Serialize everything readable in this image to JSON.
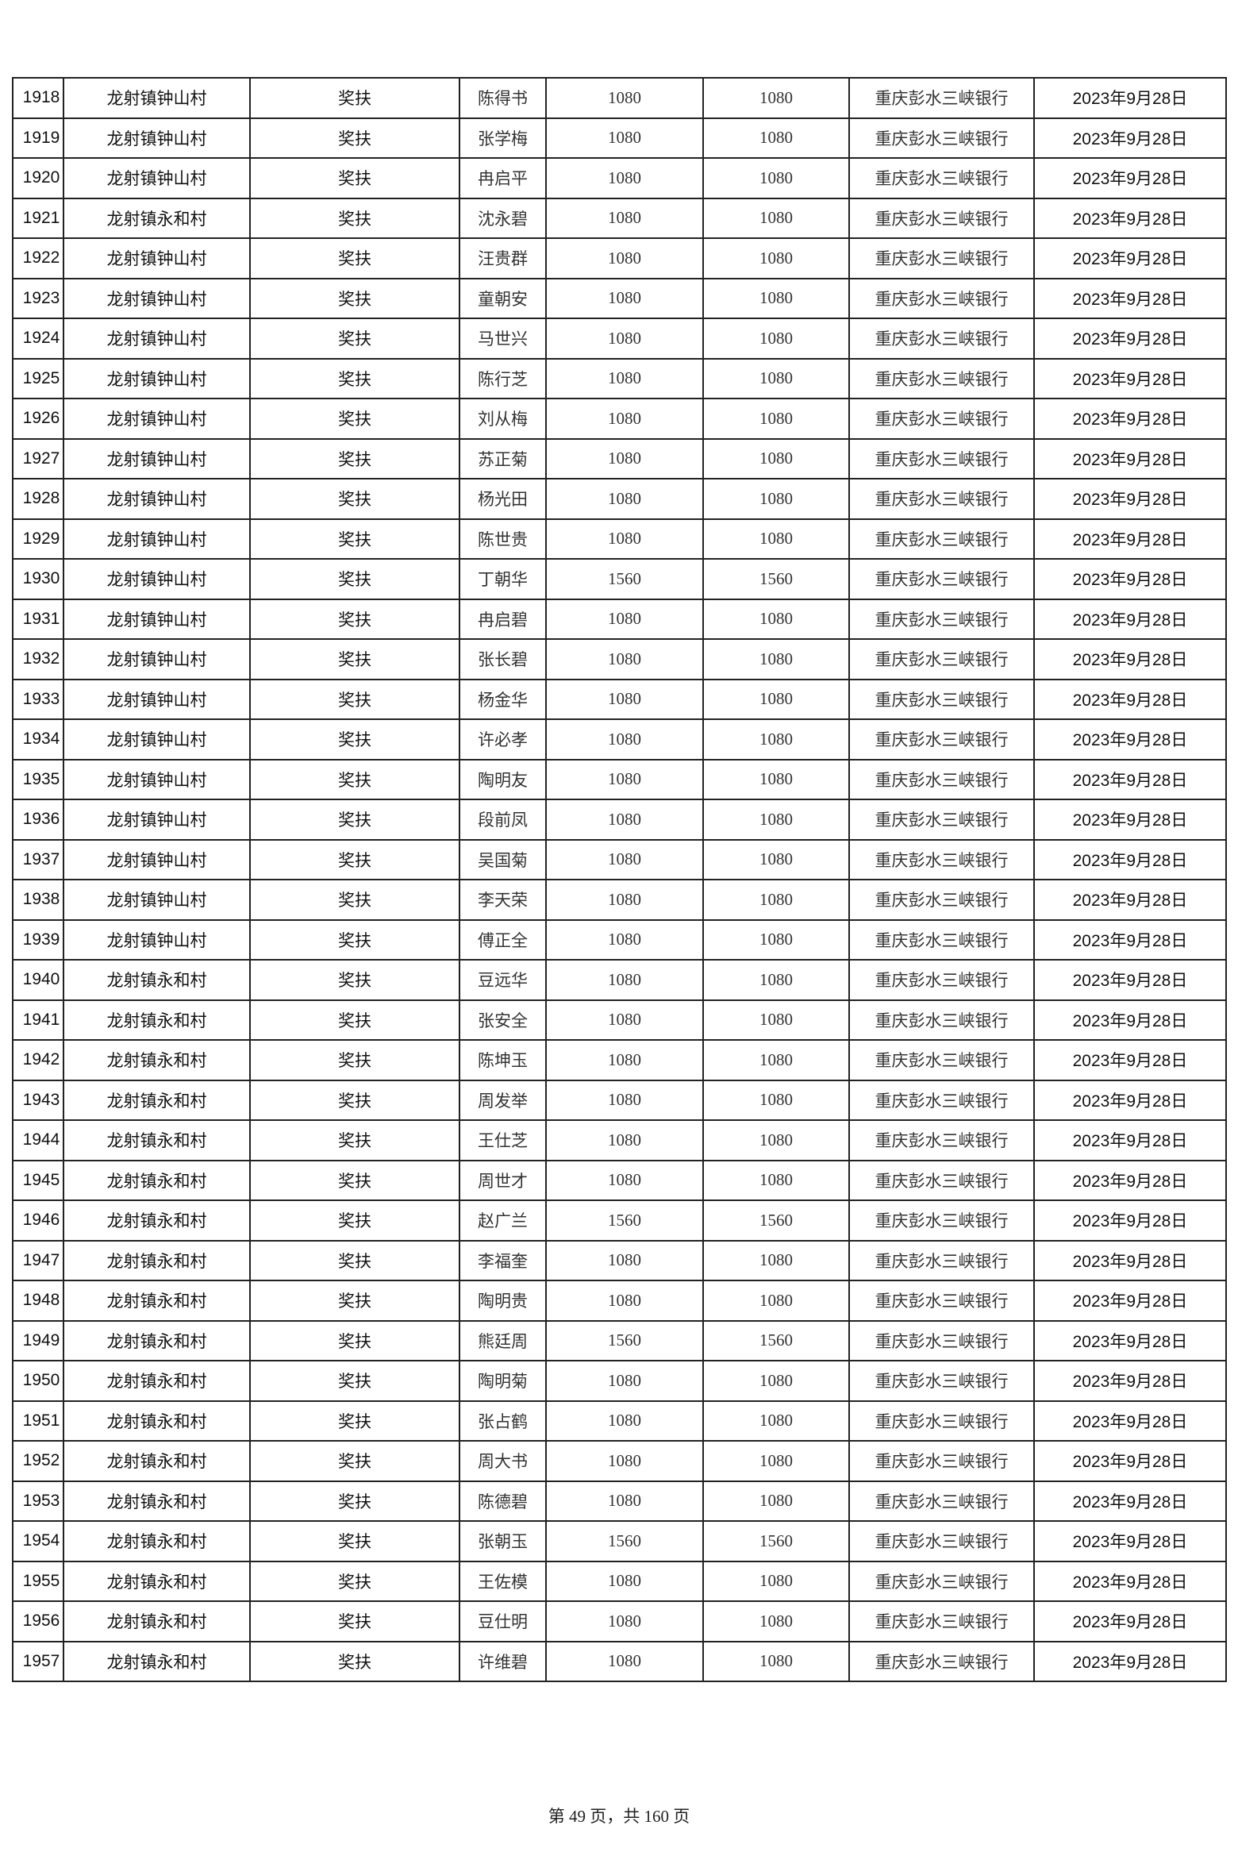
{
  "table": {
    "rows": [
      [
        "1918",
        "龙射镇钟山村",
        "奖扶",
        "陈得书",
        "1080",
        "1080",
        "重庆彭水三峡银行",
        "2023年9月28日"
      ],
      [
        "1919",
        "龙射镇钟山村",
        "奖扶",
        "张学梅",
        "1080",
        "1080",
        "重庆彭水三峡银行",
        "2023年9月28日"
      ],
      [
        "1920",
        "龙射镇钟山村",
        "奖扶",
        "冉启平",
        "1080",
        "1080",
        "重庆彭水三峡银行",
        "2023年9月28日"
      ],
      [
        "1921",
        "龙射镇永和村",
        "奖扶",
        "沈永碧",
        "1080",
        "1080",
        "重庆彭水三峡银行",
        "2023年9月28日"
      ],
      [
        "1922",
        "龙射镇钟山村",
        "奖扶",
        "汪贵群",
        "1080",
        "1080",
        "重庆彭水三峡银行",
        "2023年9月28日"
      ],
      [
        "1923",
        "龙射镇钟山村",
        "奖扶",
        "童朝安",
        "1080",
        "1080",
        "重庆彭水三峡银行",
        "2023年9月28日"
      ],
      [
        "1924",
        "龙射镇钟山村",
        "奖扶",
        "马世兴",
        "1080",
        "1080",
        "重庆彭水三峡银行",
        "2023年9月28日"
      ],
      [
        "1925",
        "龙射镇钟山村",
        "奖扶",
        "陈行芝",
        "1080",
        "1080",
        "重庆彭水三峡银行",
        "2023年9月28日"
      ],
      [
        "1926",
        "龙射镇钟山村",
        "奖扶",
        "刘从梅",
        "1080",
        "1080",
        "重庆彭水三峡银行",
        "2023年9月28日"
      ],
      [
        "1927",
        "龙射镇钟山村",
        "奖扶",
        "苏正菊",
        "1080",
        "1080",
        "重庆彭水三峡银行",
        "2023年9月28日"
      ],
      [
        "1928",
        "龙射镇钟山村",
        "奖扶",
        "杨光田",
        "1080",
        "1080",
        "重庆彭水三峡银行",
        "2023年9月28日"
      ],
      [
        "1929",
        "龙射镇钟山村",
        "奖扶",
        "陈世贵",
        "1080",
        "1080",
        "重庆彭水三峡银行",
        "2023年9月28日"
      ],
      [
        "1930",
        "龙射镇钟山村",
        "奖扶",
        "丁朝华",
        "1560",
        "1560",
        "重庆彭水三峡银行",
        "2023年9月28日"
      ],
      [
        "1931",
        "龙射镇钟山村",
        "奖扶",
        "冉启碧",
        "1080",
        "1080",
        "重庆彭水三峡银行",
        "2023年9月28日"
      ],
      [
        "1932",
        "龙射镇钟山村",
        "奖扶",
        "张长碧",
        "1080",
        "1080",
        "重庆彭水三峡银行",
        "2023年9月28日"
      ],
      [
        "1933",
        "龙射镇钟山村",
        "奖扶",
        "杨金华",
        "1080",
        "1080",
        "重庆彭水三峡银行",
        "2023年9月28日"
      ],
      [
        "1934",
        "龙射镇钟山村",
        "奖扶",
        "许必孝",
        "1080",
        "1080",
        "重庆彭水三峡银行",
        "2023年9月28日"
      ],
      [
        "1935",
        "龙射镇钟山村",
        "奖扶",
        "陶明友",
        "1080",
        "1080",
        "重庆彭水三峡银行",
        "2023年9月28日"
      ],
      [
        "1936",
        "龙射镇钟山村",
        "奖扶",
        "段前凤",
        "1080",
        "1080",
        "重庆彭水三峡银行",
        "2023年9月28日"
      ],
      [
        "1937",
        "龙射镇钟山村",
        "奖扶",
        "吴国菊",
        "1080",
        "1080",
        "重庆彭水三峡银行",
        "2023年9月28日"
      ],
      [
        "1938",
        "龙射镇钟山村",
        "奖扶",
        "李天荣",
        "1080",
        "1080",
        "重庆彭水三峡银行",
        "2023年9月28日"
      ],
      [
        "1939",
        "龙射镇钟山村",
        "奖扶",
        "傅正全",
        "1080",
        "1080",
        "重庆彭水三峡银行",
        "2023年9月28日"
      ],
      [
        "1940",
        "龙射镇永和村",
        "奖扶",
        "豆远华",
        "1080",
        "1080",
        "重庆彭水三峡银行",
        "2023年9月28日"
      ],
      [
        "1941",
        "龙射镇永和村",
        "奖扶",
        "张安全",
        "1080",
        "1080",
        "重庆彭水三峡银行",
        "2023年9月28日"
      ],
      [
        "1942",
        "龙射镇永和村",
        "奖扶",
        "陈坤玉",
        "1080",
        "1080",
        "重庆彭水三峡银行",
        "2023年9月28日"
      ],
      [
        "1943",
        "龙射镇永和村",
        "奖扶",
        "周发举",
        "1080",
        "1080",
        "重庆彭水三峡银行",
        "2023年9月28日"
      ],
      [
        "1944",
        "龙射镇永和村",
        "奖扶",
        "王仕芝",
        "1080",
        "1080",
        "重庆彭水三峡银行",
        "2023年9月28日"
      ],
      [
        "1945",
        "龙射镇永和村",
        "奖扶",
        "周世才",
        "1080",
        "1080",
        "重庆彭水三峡银行",
        "2023年9月28日"
      ],
      [
        "1946",
        "龙射镇永和村",
        "奖扶",
        "赵广兰",
        "1560",
        "1560",
        "重庆彭水三峡银行",
        "2023年9月28日"
      ],
      [
        "1947",
        "龙射镇永和村",
        "奖扶",
        "李福奎",
        "1080",
        "1080",
        "重庆彭水三峡银行",
        "2023年9月28日"
      ],
      [
        "1948",
        "龙射镇永和村",
        "奖扶",
        "陶明贵",
        "1080",
        "1080",
        "重庆彭水三峡银行",
        "2023年9月28日"
      ],
      [
        "1949",
        "龙射镇永和村",
        "奖扶",
        "熊廷周",
        "1560",
        "1560",
        "重庆彭水三峡银行",
        "2023年9月28日"
      ],
      [
        "1950",
        "龙射镇永和村",
        "奖扶",
        "陶明菊",
        "1080",
        "1080",
        "重庆彭水三峡银行",
        "2023年9月28日"
      ],
      [
        "1951",
        "龙射镇永和村",
        "奖扶",
        "张占鹤",
        "1080",
        "1080",
        "重庆彭水三峡银行",
        "2023年9月28日"
      ],
      [
        "1952",
        "龙射镇永和村",
        "奖扶",
        "周大书",
        "1080",
        "1080",
        "重庆彭水三峡银行",
        "2023年9月28日"
      ],
      [
        "1953",
        "龙射镇永和村",
        "奖扶",
        "陈德碧",
        "1080",
        "1080",
        "重庆彭水三峡银行",
        "2023年9月28日"
      ],
      [
        "1954",
        "龙射镇永和村",
        "奖扶",
        "张朝玉",
        "1560",
        "1560",
        "重庆彭水三峡银行",
        "2023年9月28日"
      ],
      [
        "1955",
        "龙射镇永和村",
        "奖扶",
        "王佐模",
        "1080",
        "1080",
        "重庆彭水三峡银行",
        "2023年9月28日"
      ],
      [
        "1956",
        "龙射镇永和村",
        "奖扶",
        "豆仕明",
        "1080",
        "1080",
        "重庆彭水三峡银行",
        "2023年9月28日"
      ],
      [
        "1957",
        "龙射镇永和村",
        "奖扶",
        "许维碧",
        "1080",
        "1080",
        "重庆彭水三峡银行",
        "2023年9月28日"
      ]
    ]
  },
  "footer": {
    "page_label": "第 49 页，共 160 页"
  }
}
